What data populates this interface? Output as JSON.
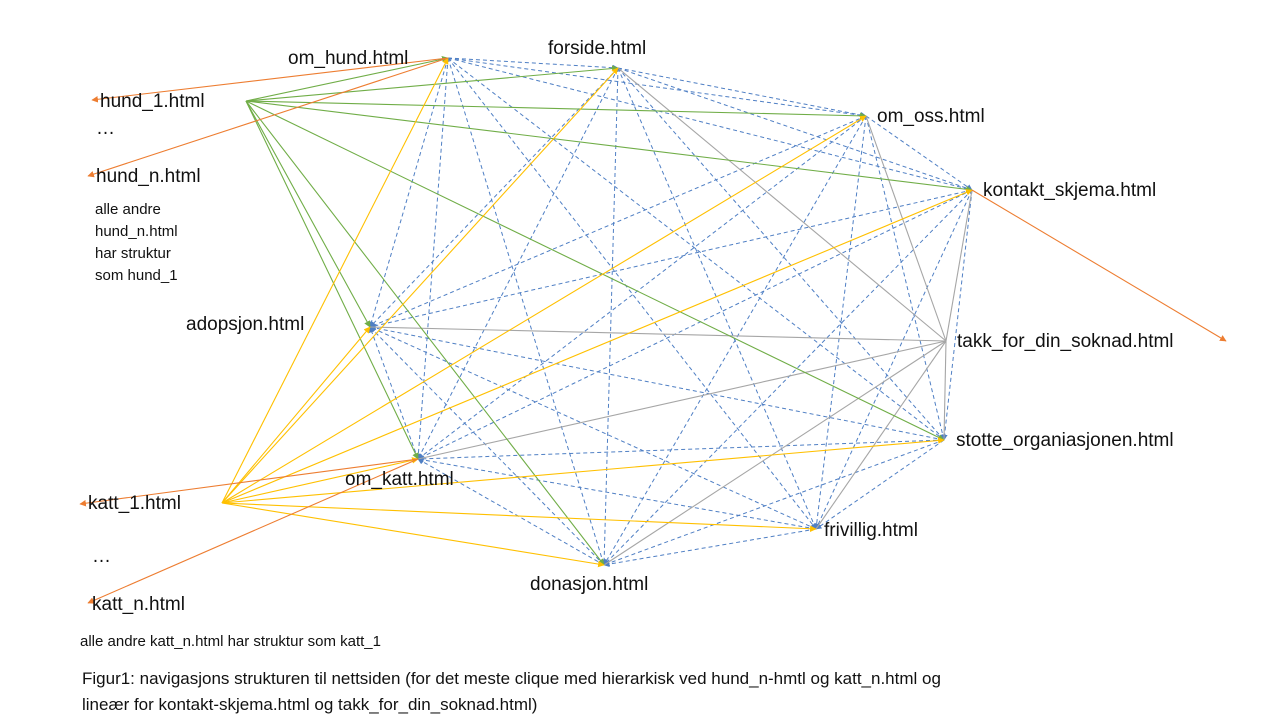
{
  "colors": {
    "clique": "#4f7fc4",
    "om_hund_links": "#70ad47",
    "katt_links": "#ffc000",
    "hierarchy": "#ed7d31",
    "takk_links": "#a6a6a6"
  },
  "nodes": {
    "om_hund": "om_hund.html",
    "forside": "forside.html",
    "hund_1": "hund_1.html",
    "hund_n": "hund_n.html",
    "om_oss": "om_oss.html",
    "kontakt": "kontakt_skjema.html",
    "adopsjon": "adopsjon.html",
    "takk": "takk_for_din_soknad.html",
    "stotte": "stotte_organiasjonen.html",
    "om_katt": "om_katt.html",
    "katt_1": "katt_1.html",
    "katt_n": "katt_n.html",
    "frivillig": "frivillig.html",
    "donasjon": "donasjon.html"
  },
  "ellipsis_hund": "…",
  "ellipsis_katt": "…",
  "hund_note": [
    "alle andre",
    "hund_n.html",
    "har struktur",
    "som hund_1"
  ],
  "katt_note": "alle andre katt_n.html har struktur som katt_1",
  "caption": [
    "Figur1: navigasjons strukturen til nettsiden (for det meste clique med hierarkisk ved hund_n-hmtl og katt_n.html og",
    "lineær for kontakt-skjema.html og takk_for_din_soknad.html)"
  ]
}
